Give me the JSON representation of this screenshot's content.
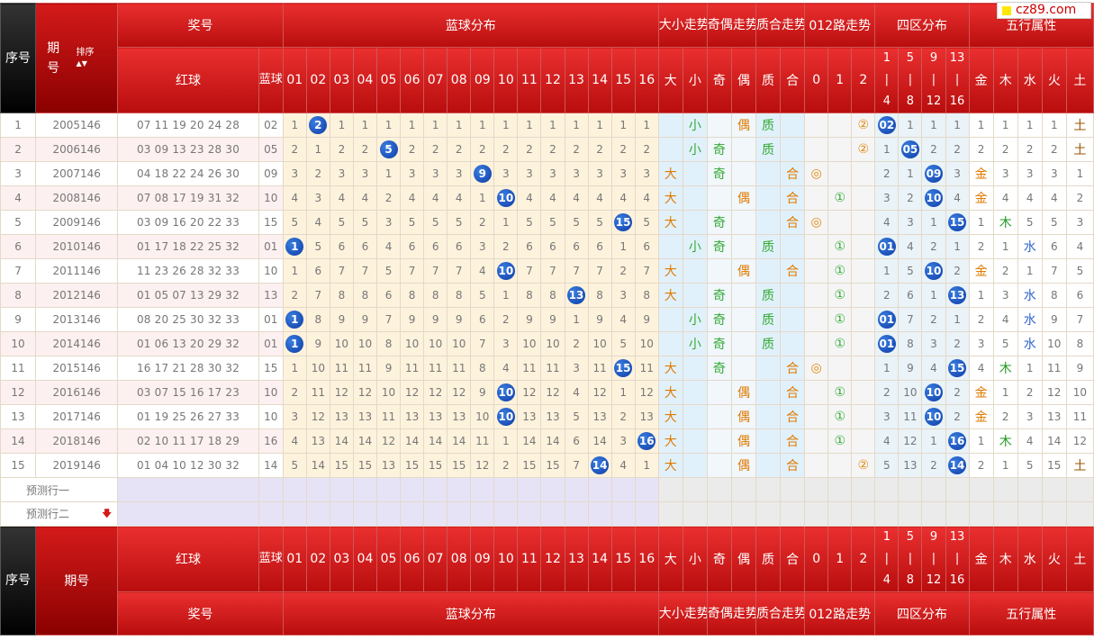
{
  "brand": {
    "logo_text": "cz89.com"
  },
  "headers": {
    "index": "序号",
    "period": "期号",
    "sort": "排序",
    "prize_no": "奖号",
    "red": "红球",
    "blue": "蓝球",
    "blue_dist": "蓝球分布",
    "big_small": "大小走势",
    "odd_even": "奇偶走势",
    "prime": "质合走势",
    "route": "012路走势",
    "zone": "四区分布",
    "five": "五行属性",
    "blue_cols": [
      "01",
      "02",
      "03",
      "04",
      "05",
      "06",
      "07",
      "08",
      "09",
      "10",
      "11",
      "12",
      "13",
      "14",
      "15",
      "16"
    ],
    "bs_cols": [
      "大",
      "小"
    ],
    "oe_cols": [
      "奇",
      "偶"
    ],
    "pc_cols": [
      "质",
      "合"
    ],
    "route_cols": [
      "0",
      "1",
      "2"
    ],
    "zone_cols": [
      "1|4",
      "5|8",
      "9|12",
      "13|16"
    ],
    "five_cols": [
      "金",
      "木",
      "水",
      "火",
      "土"
    ]
  },
  "rows": [
    {
      "i": "1",
      "p": "2005146",
      "r": "07 11 19 20 24 28",
      "b": "02",
      "d": [
        "1",
        "2",
        "1",
        "1",
        "1",
        "1",
        "1",
        "1",
        "1",
        "1",
        "1",
        "1",
        "1",
        "1",
        "1",
        "1"
      ],
      "bs": [
        "",
        "小"
      ],
      "oe": [
        "",
        "偶"
      ],
      "pc": [
        "质",
        ""
      ],
      "rt": [
        "",
        "",
        "②"
      ],
      "z": [
        "02",
        "1",
        "1",
        "1"
      ],
      "f": [
        "1",
        "1",
        "1",
        "1",
        "土"
      ]
    },
    {
      "i": "2",
      "p": "2006146",
      "r": "03 09 13 23 28 30",
      "b": "05",
      "d": [
        "2",
        "1",
        "2",
        "2",
        "5",
        "2",
        "2",
        "2",
        "2",
        "2",
        "2",
        "2",
        "2",
        "2",
        "2",
        "2"
      ],
      "bs": [
        "",
        "小"
      ],
      "oe": [
        "奇",
        ""
      ],
      "pc": [
        "质",
        ""
      ],
      "rt": [
        "",
        "",
        "②"
      ],
      "z": [
        "1",
        "05",
        "2",
        "2"
      ],
      "f": [
        "2",
        "2",
        "2",
        "2",
        "土"
      ]
    },
    {
      "i": "3",
      "p": "2007146",
      "r": "04 18 22 24 26 30",
      "b": "09",
      "d": [
        "3",
        "2",
        "3",
        "3",
        "1",
        "3",
        "3",
        "3",
        "9",
        "3",
        "3",
        "3",
        "3",
        "3",
        "3",
        "3"
      ],
      "bs": [
        "大",
        ""
      ],
      "oe": [
        "奇",
        ""
      ],
      "pc": [
        "",
        "合"
      ],
      "rt": [
        "◎",
        "",
        ""
      ],
      "z": [
        "2",
        "1",
        "09",
        "3"
      ],
      "f": [
        "金",
        "3",
        "3",
        "3",
        "1"
      ]
    },
    {
      "i": "4",
      "p": "2008146",
      "r": "07 08 17 19 31 32",
      "b": "10",
      "d": [
        "4",
        "3",
        "4",
        "4",
        "2",
        "4",
        "4",
        "4",
        "1",
        "10",
        "4",
        "4",
        "4",
        "4",
        "4",
        "4"
      ],
      "bs": [
        "大",
        ""
      ],
      "oe": [
        "",
        "偶"
      ],
      "pc": [
        "",
        "合"
      ],
      "rt": [
        "",
        "①",
        ""
      ],
      "z": [
        "3",
        "2",
        "10",
        "4"
      ],
      "f": [
        "金",
        "4",
        "4",
        "4",
        "2"
      ]
    },
    {
      "i": "5",
      "p": "2009146",
      "r": "03 09 16 20 22 33",
      "b": "15",
      "d": [
        "5",
        "4",
        "5",
        "5",
        "3",
        "5",
        "5",
        "5",
        "2",
        "1",
        "5",
        "5",
        "5",
        "5",
        "15",
        "5"
      ],
      "bs": [
        "大",
        ""
      ],
      "oe": [
        "奇",
        ""
      ],
      "pc": [
        "",
        "合"
      ],
      "rt": [
        "◎",
        "",
        ""
      ],
      "z": [
        "4",
        "3",
        "1",
        "15"
      ],
      "f": [
        "1",
        "木",
        "5",
        "5",
        "3"
      ]
    },
    {
      "i": "6",
      "p": "2010146",
      "r": "01 17 18 22 25 32",
      "b": "01",
      "d": [
        "1",
        "5",
        "6",
        "6",
        "4",
        "6",
        "6",
        "6",
        "3",
        "2",
        "6",
        "6",
        "6",
        "6",
        "1",
        "6"
      ],
      "bs": [
        "",
        "小"
      ],
      "oe": [
        "奇",
        ""
      ],
      "pc": [
        "质",
        ""
      ],
      "rt": [
        "",
        "①",
        ""
      ],
      "z": [
        "01",
        "4",
        "2",
        "1"
      ],
      "f": [
        "2",
        "1",
        "水",
        "6",
        "4"
      ]
    },
    {
      "i": "7",
      "p": "2011146",
      "r": "11 23 26 28 32 33",
      "b": "10",
      "d": [
        "1",
        "6",
        "7",
        "7",
        "5",
        "7",
        "7",
        "7",
        "4",
        "10",
        "7",
        "7",
        "7",
        "7",
        "2",
        "7"
      ],
      "bs": [
        "大",
        ""
      ],
      "oe": [
        "",
        "偶"
      ],
      "pc": [
        "",
        "合"
      ],
      "rt": [
        "",
        "①",
        ""
      ],
      "z": [
        "1",
        "5",
        "10",
        "2"
      ],
      "f": [
        "金",
        "2",
        "1",
        "7",
        "5"
      ]
    },
    {
      "i": "8",
      "p": "2012146",
      "r": "01 05 07 13 29 32",
      "b": "13",
      "d": [
        "2",
        "7",
        "8",
        "8",
        "6",
        "8",
        "8",
        "8",
        "5",
        "1",
        "8",
        "8",
        "13",
        "8",
        "3",
        "8"
      ],
      "bs": [
        "大",
        ""
      ],
      "oe": [
        "奇",
        ""
      ],
      "pc": [
        "质",
        ""
      ],
      "rt": [
        "",
        "①",
        ""
      ],
      "z": [
        "2",
        "6",
        "1",
        "13"
      ],
      "f": [
        "1",
        "3",
        "水",
        "8",
        "6"
      ]
    },
    {
      "i": "9",
      "p": "2013146",
      "r": "08 20 25 30 32 33",
      "b": "01",
      "d": [
        "1",
        "8",
        "9",
        "9",
        "7",
        "9",
        "9",
        "9",
        "6",
        "2",
        "9",
        "9",
        "1",
        "9",
        "4",
        "9"
      ],
      "bs": [
        "",
        "小"
      ],
      "oe": [
        "奇",
        ""
      ],
      "pc": [
        "质",
        ""
      ],
      "rt": [
        "",
        "①",
        ""
      ],
      "z": [
        "01",
        "7",
        "2",
        "1"
      ],
      "f": [
        "2",
        "4",
        "水",
        "9",
        "7"
      ]
    },
    {
      "i": "10",
      "p": "2014146",
      "r": "01 06 13 20 29 32",
      "b": "01",
      "d": [
        "1",
        "9",
        "10",
        "10",
        "8",
        "10",
        "10",
        "10",
        "7",
        "3",
        "10",
        "10",
        "2",
        "10",
        "5",
        "10"
      ],
      "bs": [
        "",
        "小"
      ],
      "oe": [
        "奇",
        ""
      ],
      "pc": [
        "质",
        ""
      ],
      "rt": [
        "",
        "①",
        ""
      ],
      "z": [
        "01",
        "8",
        "3",
        "2"
      ],
      "f": [
        "3",
        "5",
        "水",
        "10",
        "8"
      ]
    },
    {
      "i": "11",
      "p": "2015146",
      "r": "16 17 21 28 30 32",
      "b": "15",
      "d": [
        "1",
        "10",
        "11",
        "11",
        "9",
        "11",
        "11",
        "11",
        "8",
        "4",
        "11",
        "11",
        "3",
        "11",
        "15",
        "11"
      ],
      "bs": [
        "大",
        ""
      ],
      "oe": [
        "奇",
        ""
      ],
      "pc": [
        "",
        "合"
      ],
      "rt": [
        "◎",
        "",
        ""
      ],
      "z": [
        "1",
        "9",
        "4",
        "15"
      ],
      "f": [
        "4",
        "木",
        "1",
        "11",
        "9"
      ]
    },
    {
      "i": "12",
      "p": "2016146",
      "r": "03 07 15 16 17 23",
      "b": "10",
      "d": [
        "2",
        "11",
        "12",
        "12",
        "10",
        "12",
        "12",
        "12",
        "9",
        "10",
        "12",
        "12",
        "4",
        "12",
        "1",
        "12"
      ],
      "bs": [
        "大",
        ""
      ],
      "oe": [
        "",
        "偶"
      ],
      "pc": [
        "",
        "合"
      ],
      "rt": [
        "",
        "①",
        ""
      ],
      "z": [
        "2",
        "10",
        "10",
        "2"
      ],
      "f": [
        "金",
        "1",
        "2",
        "12",
        "10"
      ]
    },
    {
      "i": "13",
      "p": "2017146",
      "r": "01 19 25 26 27 33",
      "b": "10",
      "d": [
        "3",
        "12",
        "13",
        "13",
        "11",
        "13",
        "13",
        "13",
        "10",
        "10",
        "13",
        "13",
        "5",
        "13",
        "2",
        "13"
      ],
      "bs": [
        "大",
        ""
      ],
      "oe": [
        "",
        "偶"
      ],
      "pc": [
        "",
        "合"
      ],
      "rt": [
        "",
        "①",
        ""
      ],
      "z": [
        "3",
        "11",
        "10",
        "2"
      ],
      "f": [
        "金",
        "2",
        "3",
        "13",
        "11"
      ]
    },
    {
      "i": "14",
      "p": "2018146",
      "r": "02 10 11 17 18 29",
      "b": "16",
      "d": [
        "4",
        "13",
        "14",
        "14",
        "12",
        "14",
        "14",
        "14",
        "11",
        "1",
        "14",
        "14",
        "6",
        "14",
        "3",
        "16"
      ],
      "bs": [
        "大",
        ""
      ],
      "oe": [
        "",
        "偶"
      ],
      "pc": [
        "",
        "合"
      ],
      "rt": [
        "",
        "①",
        ""
      ],
      "z": [
        "4",
        "12",
        "1",
        "16"
      ],
      "f": [
        "1",
        "木",
        "4",
        "14",
        "12"
      ]
    },
    {
      "i": "15",
      "p": "2019146",
      "r": "01 04 10 12 30 32",
      "b": "14",
      "d": [
        "5",
        "14",
        "15",
        "15",
        "13",
        "15",
        "15",
        "15",
        "12",
        "2",
        "15",
        "15",
        "7",
        "14",
        "4",
        "1"
      ],
      "bs": [
        "大",
        ""
      ],
      "oe": [
        "",
        "偶"
      ],
      "pc": [
        "",
        "合"
      ],
      "rt": [
        "",
        "",
        "②"
      ],
      "z": [
        "5",
        "13",
        "2",
        "14"
      ],
      "f": [
        "2",
        "1",
        "5",
        "15",
        "土"
      ]
    }
  ],
  "predict": [
    "预测行一",
    "预测行二"
  ],
  "predict_arrow": "🡇",
  "colors": {
    "header_red": "#d41a1a",
    "ball_blue": "#1a4fc0",
    "red_text": "#d21a1a"
  }
}
